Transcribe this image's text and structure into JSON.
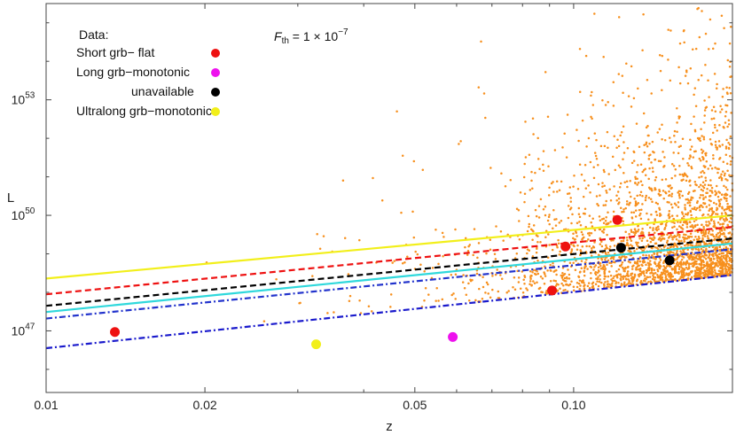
{
  "chart_data": {
    "type": "scatter",
    "xlabel": "z",
    "ylabel": "L",
    "xscale": "log",
    "yscale": "log",
    "xlim": [
      0.01,
      0.2
    ],
    "ylim_log10": [
      45.4,
      55.5
    ],
    "x_ticks": [
      {
        "value": 0.01,
        "label": "0.01"
      },
      {
        "value": 0.02,
        "label": "0.02"
      },
      {
        "value": 0.05,
        "label": "0.05"
      },
      {
        "value": 0.1,
        "label": "0.10"
      }
    ],
    "y_ticks": [
      {
        "exp": 47,
        "base": "10",
        "sup": "47"
      },
      {
        "exp": 50,
        "base": "10",
        "sup": "50"
      },
      {
        "exp": 53,
        "base": "10",
        "sup": "53"
      }
    ],
    "annotation": {
      "main": "F",
      "sub": "th",
      "rest": " = 1 × 10",
      "sup": "−7"
    },
    "legend": {
      "header": "Data:",
      "placement": "top-left",
      "entries": [
        {
          "label": "Short grb− flat",
          "color": "#ee1111"
        },
        {
          "label": "Long grb−monotonic",
          "color": "#ee11ee"
        },
        {
          "label": "unavailable",
          "color": "#000000"
        },
        {
          "label": "Ultralong grb−monotonic",
          "color": "#f2ef1a"
        }
      ]
    },
    "background_points": {
      "color": "#f7901e",
      "description": "simulated population, density increasing toward high z"
    },
    "series": [
      {
        "category": "Short grb− flat",
        "color": "#ee1111",
        "points": [
          [
            0.0135,
            46.97
          ],
          [
            0.091,
            48.05
          ],
          [
            0.0965,
            49.19
          ],
          [
            0.121,
            49.88
          ]
        ]
      },
      {
        "category": "Long grb−monotonic",
        "color": "#ee11ee",
        "points": [
          [
            0.059,
            46.84
          ]
        ]
      },
      {
        "category": "unavailable",
        "color": "#000000",
        "points": [
          [
            0.123,
            49.16
          ],
          [
            0.152,
            48.83
          ]
        ]
      },
      {
        "category": "Ultralong grb−monotonic",
        "color": "#f2ef1a",
        "points": [
          [
            0.0325,
            46.65
          ]
        ]
      }
    ],
    "lines": [
      {
        "color": "#f2ef1a",
        "style": "solid",
        "from": [
          0.01,
          48.36
        ],
        "to": [
          0.2,
          50.0
        ]
      },
      {
        "color": "#ee1111",
        "style": "dashed",
        "from": [
          0.01,
          47.95
        ],
        "to": [
          0.2,
          49.7
        ]
      },
      {
        "color": "#000000",
        "style": "dashed",
        "from": [
          0.01,
          47.65
        ],
        "to": [
          0.2,
          49.4
        ]
      },
      {
        "color": "#2fd8dc",
        "style": "solid",
        "from": [
          0.01,
          47.49
        ],
        "to": [
          0.2,
          49.27
        ]
      },
      {
        "color": "#2233cc",
        "style": "dashdot",
        "from": [
          0.01,
          47.32
        ],
        "to": [
          0.2,
          49.12
        ]
      },
      {
        "color": "#1a1acc",
        "style": "dashdot",
        "from": [
          0.01,
          46.55
        ],
        "to": [
          0.2,
          48.45
        ]
      }
    ]
  }
}
